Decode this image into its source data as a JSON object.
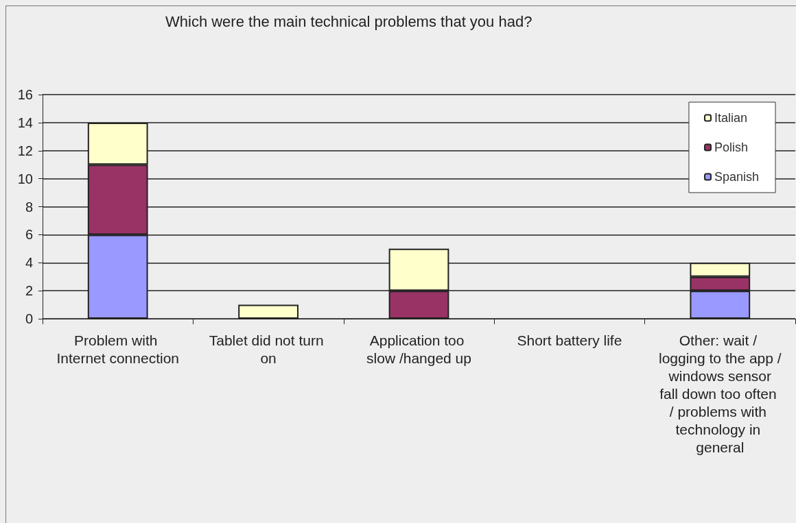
{
  "chart_data": {
    "type": "bar",
    "stacked": true,
    "title": "Which were the main technical problems that you had?",
    "categories": [
      "Problem with Internet connection",
      "Tablet did not turn on",
      "Application too slow /hanged up",
      "Short battery life",
      "Other: wait / logging to the app / windows sensor fall down too often / problems with technology in general"
    ],
    "series": [
      {
        "name": "Spanish",
        "color": "#9999ff",
        "values": [
          6,
          0,
          0,
          0,
          2
        ]
      },
      {
        "name": "Polish",
        "color": "#993366",
        "values": [
          5,
          0,
          2,
          0,
          1
        ]
      },
      {
        "name": "Italian",
        "color": "#ffffcc",
        "values": [
          3,
          1,
          3,
          0,
          1
        ]
      }
    ],
    "ylim": [
      0,
      16
    ],
    "yticks": [
      0,
      2,
      4,
      6,
      8,
      10,
      12,
      14,
      16
    ],
    "grid": "y",
    "legend": "top right"
  }
}
